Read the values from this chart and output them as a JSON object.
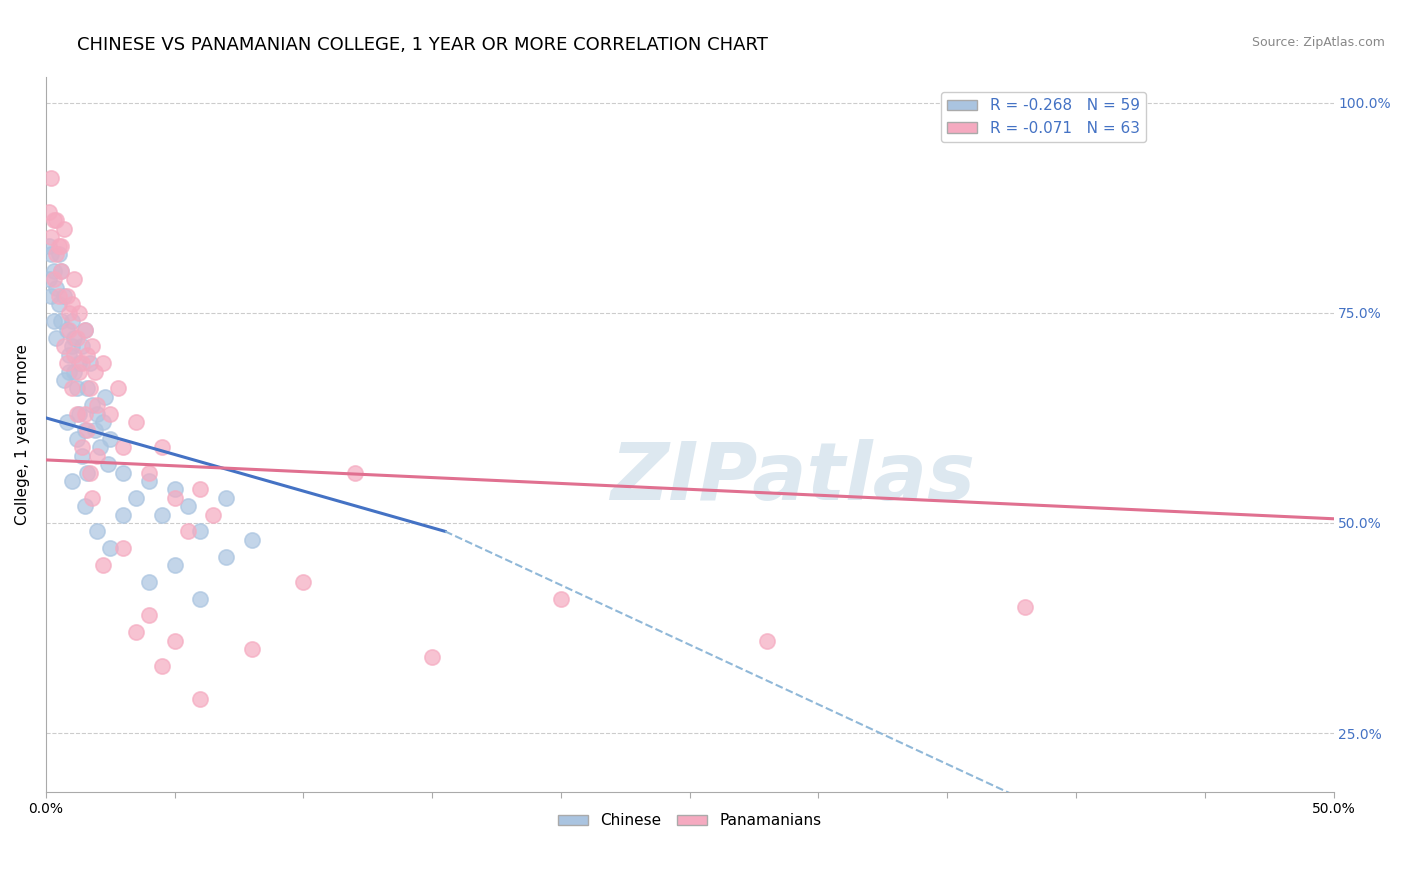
{
  "title": "CHINESE VS PANAMANIAN COLLEGE, 1 YEAR OR MORE CORRELATION CHART",
  "source_text": "Source: ZipAtlas.com",
  "ylabel": "College, 1 year or more",
  "xmin": 0.0,
  "xmax": 0.5,
  "ymin": 0.18,
  "ymax": 1.03,
  "yticks": [
    0.25,
    0.5,
    0.75,
    1.0
  ],
  "ytick_labels": [
    "25.0%",
    "50.0%",
    "75.0%",
    "100.0%"
  ],
  "legend_R_chinese": "R = -0.268",
  "legend_N_chinese": "N = 59",
  "legend_R_panamanian": "R = -0.071",
  "legend_N_panamanian": "N = 63",
  "chinese_color": "#aac4e0",
  "panamanian_color": "#f5aac0",
  "chinese_line_color": "#4472c4",
  "panamanian_line_color": "#e07090",
  "dashed_line_color": "#90b8d8",
  "watermark_color": "#dde8f0",
  "grid_color": "#cccccc",
  "background_color": "#ffffff",
  "title_fontsize": 13,
  "axis_label_fontsize": 11,
  "tick_fontsize": 10,
  "legend_fontsize": 11,
  "source_fontsize": 9,
  "chinese_scatter": [
    [
      0.001,
      0.83
    ],
    [
      0.001,
      0.79
    ],
    [
      0.002,
      0.82
    ],
    [
      0.002,
      0.77
    ],
    [
      0.003,
      0.8
    ],
    [
      0.003,
      0.74
    ],
    [
      0.004,
      0.78
    ],
    [
      0.004,
      0.72
    ],
    [
      0.005,
      0.82
    ],
    [
      0.005,
      0.76
    ],
    [
      0.006,
      0.74
    ],
    [
      0.006,
      0.8
    ],
    [
      0.007,
      0.77
    ],
    [
      0.007,
      0.67
    ],
    [
      0.008,
      0.73
    ],
    [
      0.008,
      0.62
    ],
    [
      0.009,
      0.7
    ],
    [
      0.009,
      0.68
    ],
    [
      0.01,
      0.71
    ],
    [
      0.01,
      0.74
    ],
    [
      0.011,
      0.72
    ],
    [
      0.011,
      0.68
    ],
    [
      0.012,
      0.66
    ],
    [
      0.012,
      0.6
    ],
    [
      0.013,
      0.69
    ],
    [
      0.013,
      0.63
    ],
    [
      0.014,
      0.71
    ],
    [
      0.014,
      0.58
    ],
    [
      0.015,
      0.73
    ],
    [
      0.015,
      0.61
    ],
    [
      0.016,
      0.66
    ],
    [
      0.016,
      0.56
    ],
    [
      0.017,
      0.69
    ],
    [
      0.018,
      0.64
    ],
    [
      0.019,
      0.61
    ],
    [
      0.02,
      0.63
    ],
    [
      0.021,
      0.59
    ],
    [
      0.022,
      0.62
    ],
    [
      0.023,
      0.65
    ],
    [
      0.024,
      0.57
    ],
    [
      0.025,
      0.6
    ],
    [
      0.025,
      0.47
    ],
    [
      0.03,
      0.56
    ],
    [
      0.03,
      0.51
    ],
    [
      0.035,
      0.53
    ],
    [
      0.04,
      0.55
    ],
    [
      0.04,
      0.43
    ],
    [
      0.045,
      0.51
    ],
    [
      0.05,
      0.54
    ],
    [
      0.05,
      0.45
    ],
    [
      0.055,
      0.52
    ],
    [
      0.06,
      0.49
    ],
    [
      0.06,
      0.41
    ],
    [
      0.07,
      0.53
    ],
    [
      0.07,
      0.46
    ],
    [
      0.08,
      0.48
    ],
    [
      0.02,
      0.49
    ],
    [
      0.015,
      0.52
    ],
    [
      0.01,
      0.55
    ]
  ],
  "panamanian_scatter": [
    [
      0.001,
      0.87
    ],
    [
      0.002,
      0.91
    ],
    [
      0.002,
      0.84
    ],
    [
      0.003,
      0.86
    ],
    [
      0.003,
      0.79
    ],
    [
      0.004,
      0.82
    ],
    [
      0.004,
      0.86
    ],
    [
      0.005,
      0.83
    ],
    [
      0.005,
      0.77
    ],
    [
      0.006,
      0.8
    ],
    [
      0.006,
      0.83
    ],
    [
      0.007,
      0.85
    ],
    [
      0.007,
      0.71
    ],
    [
      0.008,
      0.77
    ],
    [
      0.008,
      0.69
    ],
    [
      0.009,
      0.73
    ],
    [
      0.009,
      0.75
    ],
    [
      0.01,
      0.76
    ],
    [
      0.01,
      0.66
    ],
    [
      0.011,
      0.79
    ],
    [
      0.011,
      0.7
    ],
    [
      0.012,
      0.72
    ],
    [
      0.012,
      0.63
    ],
    [
      0.013,
      0.75
    ],
    [
      0.013,
      0.68
    ],
    [
      0.014,
      0.69
    ],
    [
      0.014,
      0.59
    ],
    [
      0.015,
      0.73
    ],
    [
      0.015,
      0.63
    ],
    [
      0.016,
      0.7
    ],
    [
      0.016,
      0.61
    ],
    [
      0.017,
      0.66
    ],
    [
      0.017,
      0.56
    ],
    [
      0.018,
      0.71
    ],
    [
      0.018,
      0.53
    ],
    [
      0.019,
      0.68
    ],
    [
      0.02,
      0.64
    ],
    [
      0.02,
      0.58
    ],
    [
      0.022,
      0.69
    ],
    [
      0.022,
      0.45
    ],
    [
      0.025,
      0.63
    ],
    [
      0.028,
      0.66
    ],
    [
      0.03,
      0.59
    ],
    [
      0.03,
      0.47
    ],
    [
      0.035,
      0.62
    ],
    [
      0.035,
      0.37
    ],
    [
      0.04,
      0.56
    ],
    [
      0.04,
      0.39
    ],
    [
      0.045,
      0.59
    ],
    [
      0.045,
      0.33
    ],
    [
      0.05,
      0.53
    ],
    [
      0.05,
      0.36
    ],
    [
      0.055,
      0.49
    ],
    [
      0.06,
      0.54
    ],
    [
      0.06,
      0.29
    ],
    [
      0.065,
      0.51
    ],
    [
      0.08,
      0.35
    ],
    [
      0.1,
      0.43
    ],
    [
      0.12,
      0.56
    ],
    [
      0.15,
      0.34
    ],
    [
      0.2,
      0.41
    ],
    [
      0.28,
      0.36
    ],
    [
      0.38,
      0.4
    ]
  ],
  "chinese_trend_x": [
    0.0,
    0.155
  ],
  "chinese_trend_y": [
    0.625,
    0.49
  ],
  "panamanian_trend_x": [
    0.0,
    0.5
  ],
  "panamanian_trend_y": [
    0.575,
    0.505
  ],
  "dashed_line_x": [
    0.155,
    0.5
  ],
  "dashed_line_y": [
    0.49,
    0.0
  ]
}
